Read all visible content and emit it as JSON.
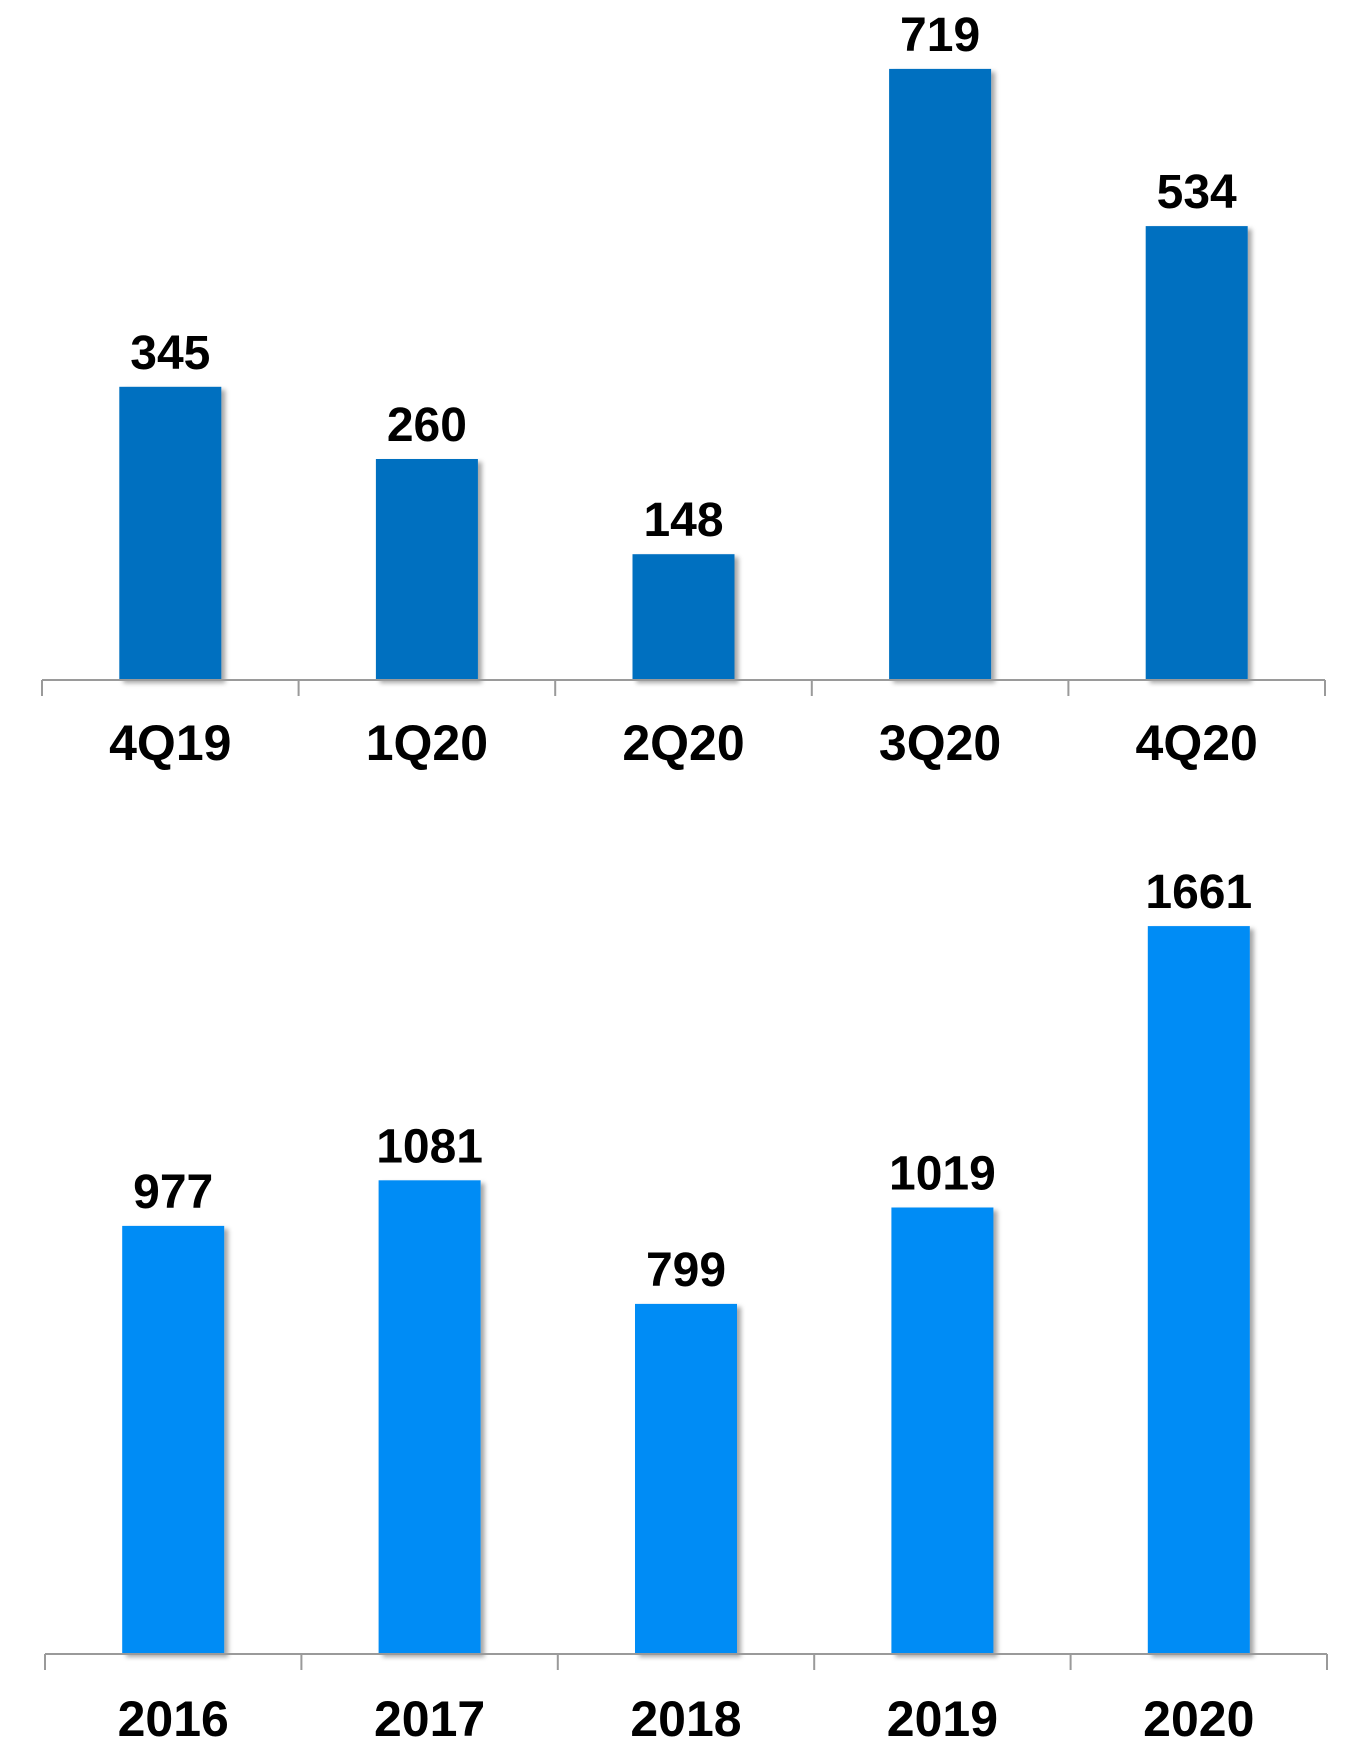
{
  "chart_data": [
    {
      "type": "bar",
      "categories": [
        "4Q19",
        "1Q20",
        "2Q20",
        "3Q20",
        "4Q20"
      ],
      "values": [
        345,
        260,
        148,
        719,
        534
      ],
      "value_labels": [
        "345",
        "260",
        "148",
        "719",
        "534"
      ],
      "ylim": [
        0,
        800
      ],
      "grid": false,
      "bar_color": "#0070C0"
    },
    {
      "type": "bar",
      "categories": [
        "2016",
        "2017",
        "2018",
        "2019",
        "2020"
      ],
      "values": [
        977,
        1081,
        799,
        1019,
        1661
      ],
      "value_labels": [
        "977",
        "1081",
        "799",
        "1019",
        "1661"
      ],
      "ylim": [
        0,
        1780
      ],
      "grid": false,
      "bar_color": "#008CF5"
    }
  ]
}
